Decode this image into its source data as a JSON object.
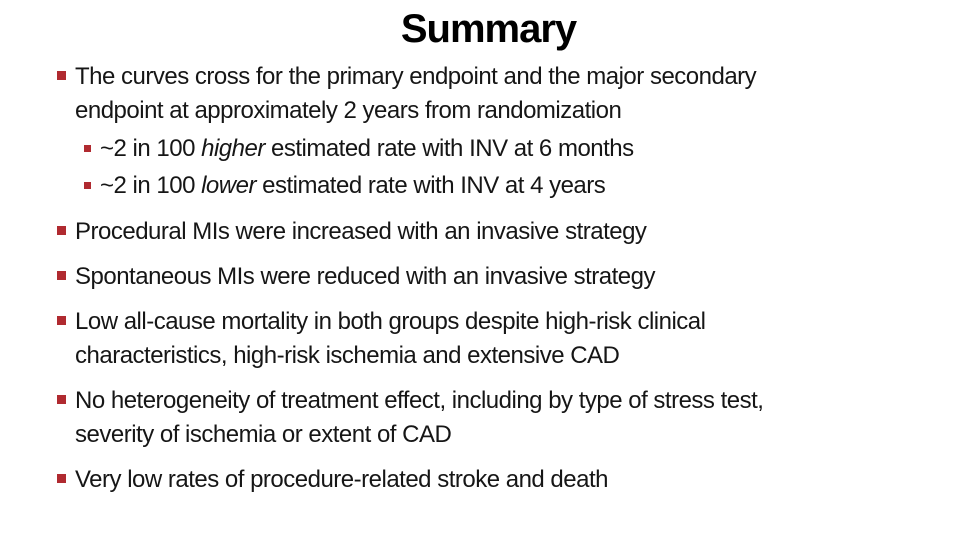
{
  "slide": {
    "title": "Summary",
    "colors": {
      "accent_red": "#B02A30",
      "text": "#161616",
      "title": "#000000",
      "background": "#FFFFFF"
    },
    "bullets": [
      {
        "level": 1,
        "lines": [
          [
            {
              "t": "The curves cross for the primary endpoint and the major secondary"
            }
          ],
          [
            {
              "t": "endpoint at approximately 2 years from randomization"
            }
          ]
        ]
      },
      {
        "level": 2,
        "lines": [
          [
            {
              "t": "~2 in 100 "
            },
            {
              "t": "higher",
              "i": true
            },
            {
              "t": " estimated rate with INV at 6 months"
            }
          ]
        ]
      },
      {
        "level": 2,
        "lines": [
          [
            {
              "t": "~2 in 100 "
            },
            {
              "t": "lower",
              "i": true
            },
            {
              "t": " estimated rate with INV at 4 years"
            }
          ]
        ]
      },
      {
        "level": 1,
        "lines": [
          [
            {
              "t": "Procedural MIs were increased with an invasive strategy"
            }
          ]
        ]
      },
      {
        "level": 1,
        "lines": [
          [
            {
              "t": "Spontaneous MIs were reduced with an invasive strategy"
            }
          ]
        ]
      },
      {
        "level": 1,
        "lines": [
          [
            {
              "t": "Low all-cause mortality in both groups despite high-risk clinical"
            }
          ],
          [
            {
              "t": "characteristics, high-risk ischemia and extensive CAD"
            }
          ]
        ]
      },
      {
        "level": 1,
        "lines": [
          [
            {
              "t": "No heterogeneity of treatment effect, including by type of stress test,"
            }
          ],
          [
            {
              "t": "severity of ischemia or extent of CAD"
            }
          ]
        ]
      },
      {
        "level": 1,
        "lines": [
          [
            {
              "t": "Very low rates of procedure-related stroke and death"
            }
          ]
        ]
      }
    ]
  }
}
